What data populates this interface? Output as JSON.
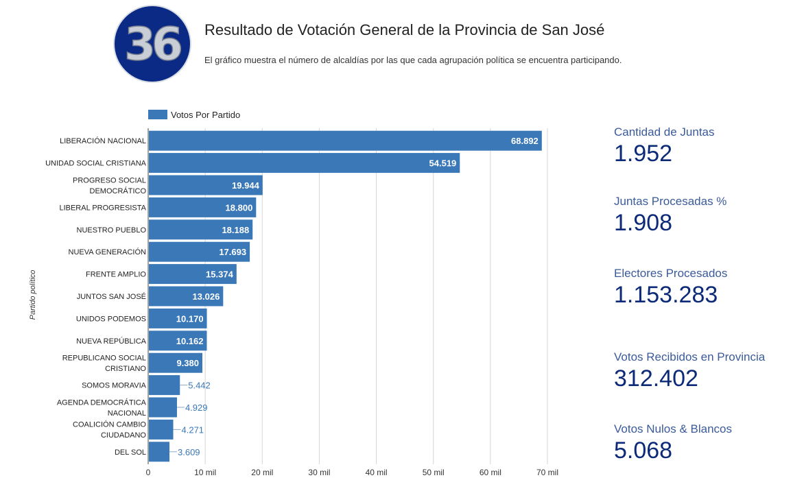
{
  "logo": {
    "text": "36",
    "colors": {
      "ring": "#0b2a86",
      "digits": "#c8cdd6"
    }
  },
  "header": {
    "title": "Resultado de Votación General de la Provincia de San José",
    "subtitle": "El gráfico muestra el número de alcaldías por las que cada agrupación política se encuentra participando."
  },
  "chart_data": {
    "type": "bar",
    "orientation": "horizontal",
    "legend": {
      "label": "Votos Por Partido",
      "placement": "top-left"
    },
    "ylabel": "Partido político",
    "xlabel": "",
    "xlim": [
      0,
      70000
    ],
    "xticks": [
      {
        "value": 0,
        "label": "0"
      },
      {
        "value": 10000,
        "label": "10 mil"
      },
      {
        "value": 20000,
        "label": "20 mil"
      },
      {
        "value": 30000,
        "label": "30 mil"
      },
      {
        "value": 40000,
        "label": "40 mil"
      },
      {
        "value": 50000,
        "label": "50 mil"
      },
      {
        "value": 60000,
        "label": "60 mil"
      },
      {
        "value": 70000,
        "label": "70 mil"
      }
    ],
    "grid": true,
    "color": "#3a78b8",
    "categories": [
      [
        "LIBERACIÓN NACIONAL"
      ],
      [
        "UNIDAD SOCIAL CRISTIANA"
      ],
      [
        "PROGRESO SOCIAL",
        "DEMOCRÁTICO"
      ],
      [
        "LIBERAL PROGRESISTA"
      ],
      [
        "NUESTRO PUEBLO"
      ],
      [
        "NUEVA GENERACIÓN"
      ],
      [
        "FRENTE AMPLIO"
      ],
      [
        "JUNTOS SAN JOSÉ"
      ],
      [
        "UNIDOS PODEMOS"
      ],
      [
        "NUEVA REPÚBLICA"
      ],
      [
        "REPUBLICANO SOCIAL",
        "CRISTIANO"
      ],
      [
        "SOMOS MORAVIA"
      ],
      [
        "AGENDA DEMOCRÁTICA",
        "NACIONAL"
      ],
      [
        "COALICIÓN CAMBIO",
        "CIUDADANO"
      ],
      [
        "DEL SOL"
      ]
    ],
    "values": [
      68892,
      54519,
      19944,
      18800,
      18188,
      17693,
      15374,
      13026,
      10170,
      10162,
      9380,
      5442,
      4929,
      4271,
      3609
    ],
    "value_labels": [
      "68.892",
      "54.519",
      "19.944",
      "18.800",
      "18.188",
      "17.693",
      "15.374",
      "13.026",
      "10.170",
      "10.162",
      "9.380",
      "5.442",
      "4.929",
      "4.271",
      "3.609"
    ]
  },
  "stats": [
    {
      "label": "Cantidad de Juntas",
      "value": "1.952"
    },
    {
      "label": "Juntas Procesadas %",
      "value": "1.908"
    },
    {
      "label": "Electores Procesados",
      "value": "1.153.283"
    },
    {
      "label": "Votos Recibidos en Provincia",
      "value": "312.402"
    },
    {
      "label": "Votos Nulos & Blancos",
      "value": "5.068"
    }
  ],
  "colors": {
    "kpi_label": "#3a5a9a",
    "kpi_value": "#0c2a78",
    "bar": "#3a78b8"
  }
}
